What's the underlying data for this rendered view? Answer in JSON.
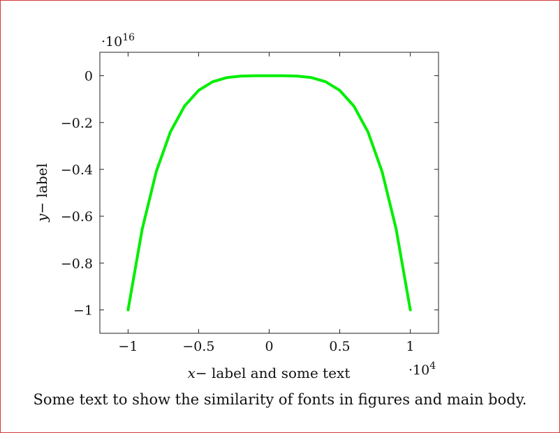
{
  "chart_data": {
    "type": "line",
    "xlabel": "x− label and some text",
    "ylabel": "y− label",
    "x_multiplier": "·10^4",
    "y_multiplier": "·10^16",
    "xlim": [
      -1.2,
      1.2
    ],
    "ylim": [
      -1.1,
      0.1
    ],
    "x_ticks": [
      -1,
      -0.5,
      0,
      0.5,
      1
    ],
    "y_ticks": [
      0,
      -0.2,
      -0.4,
      -0.6,
      -0.8,
      -1
    ],
    "x_tick_labels": [
      "−1",
      "−0.5",
      "0",
      "0.5",
      "1"
    ],
    "y_tick_labels": [
      "0",
      "−0.2",
      "−0.4",
      "−0.6",
      "−0.8",
      "−1"
    ],
    "grid": false,
    "series": [
      {
        "color": "#00ee00",
        "x": [
          -1,
          -0.9,
          -0.8,
          -0.7,
          -0.6,
          -0.5,
          -0.4,
          -0.3,
          -0.2,
          -0.1,
          0,
          0.1,
          0.2,
          0.3,
          0.4,
          0.5,
          0.6,
          0.7,
          0.8,
          0.9,
          1
        ],
        "y": [
          -1,
          -0.6561,
          -0.4096,
          -0.2401,
          -0.1296,
          -0.0625,
          -0.0256,
          -0.0081,
          -0.0016,
          -0.0001,
          0,
          -0.0001,
          -0.0016,
          -0.0081,
          -0.0256,
          -0.0625,
          -0.1296,
          -0.2401,
          -0.4096,
          -0.6561,
          -1
        ]
      }
    ]
  },
  "caption": "Some text to show the similarity of fonts in figures and main body."
}
